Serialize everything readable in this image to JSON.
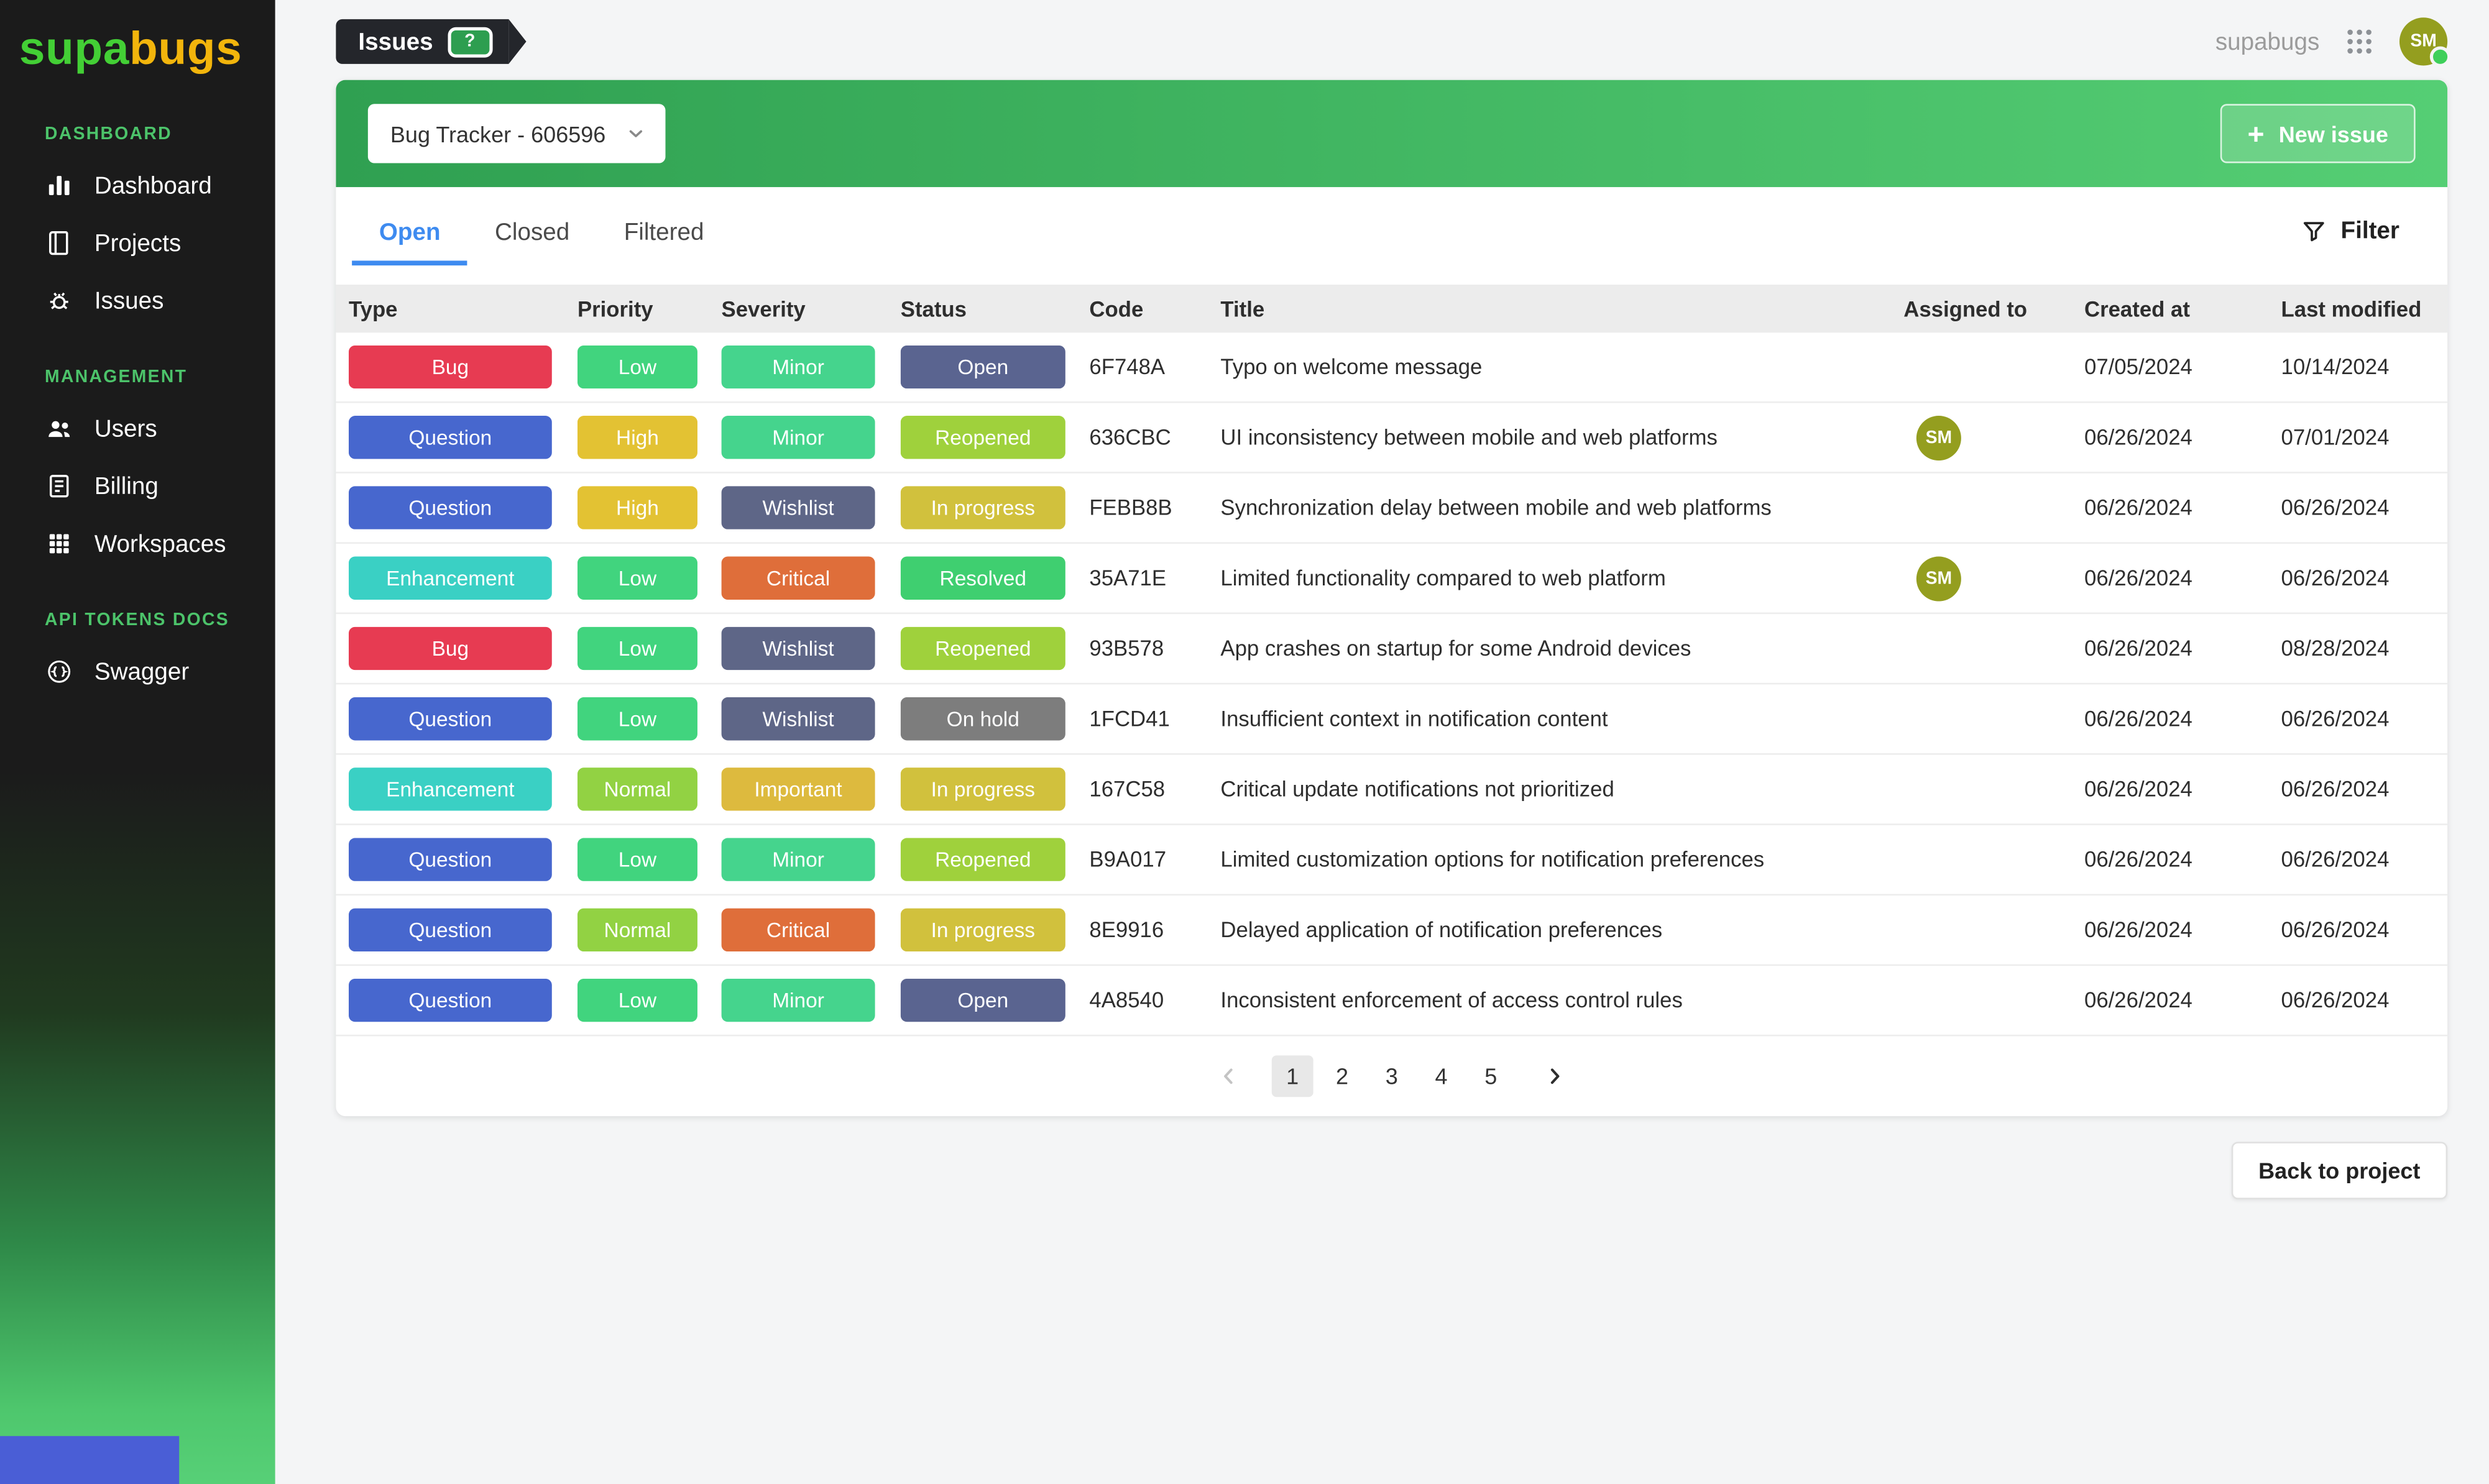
{
  "brand": {
    "part1": "supa",
    "part2": "bugs"
  },
  "sidebar": {
    "sections": [
      {
        "label": "DASHBOARD",
        "items": [
          {
            "label": "Dashboard",
            "icon": "bar-chart-icon"
          },
          {
            "label": "Projects",
            "icon": "book-icon"
          },
          {
            "label": "Issues",
            "icon": "bug-icon"
          }
        ]
      },
      {
        "label": "MANAGEMENT",
        "items": [
          {
            "label": "Users",
            "icon": "users-icon"
          },
          {
            "label": "Billing",
            "icon": "billing-icon"
          },
          {
            "label": "Workspaces",
            "icon": "grid-icon"
          }
        ]
      },
      {
        "label": "API TOKENS DOCS",
        "items": [
          {
            "label": "Swagger",
            "icon": "swagger-icon"
          }
        ]
      }
    ]
  },
  "topbar": {
    "page_tag": "Issues",
    "help_label": "?",
    "account_name": "supabugs",
    "avatar_initials": "SM"
  },
  "toolbar": {
    "project_select_value": "Bug Tracker - 606596",
    "new_issue_label": "New issue"
  },
  "tabs": [
    {
      "label": "Open",
      "active": true
    },
    {
      "label": "Closed",
      "active": false
    },
    {
      "label": "Filtered",
      "active": false
    }
  ],
  "filter_label": "Filter",
  "table": {
    "columns": [
      "Type",
      "Priority",
      "Severity",
      "Status",
      "Code",
      "Title",
      "Assigned to",
      "Created at",
      "Last modified"
    ],
    "rows": [
      {
        "type": "Bug",
        "priority": "Low",
        "severity": "Minor",
        "status": "Open",
        "code": "6F748A",
        "title": "Typo on welcome message",
        "assigned": "",
        "created_at": "07/05/2024",
        "last_modified": "10/14/2024"
      },
      {
        "type": "Question",
        "priority": "High",
        "severity": "Minor",
        "status": "Reopened",
        "code": "636CBC",
        "title": "UI inconsistency between mobile and web platforms",
        "assigned": "SM",
        "created_at": "06/26/2024",
        "last_modified": "07/01/2024"
      },
      {
        "type": "Question",
        "priority": "High",
        "severity": "Wishlist",
        "status": "In progress",
        "code": "FEBB8B",
        "title": "Synchronization delay between mobile and web platforms",
        "assigned": "",
        "created_at": "06/26/2024",
        "last_modified": "06/26/2024"
      },
      {
        "type": "Enhancement",
        "priority": "Low",
        "severity": "Critical",
        "status": "Resolved",
        "code": "35A71E",
        "title": "Limited functionality compared to web platform",
        "assigned": "SM",
        "created_at": "06/26/2024",
        "last_modified": "06/26/2024"
      },
      {
        "type": "Bug",
        "priority": "Low",
        "severity": "Wishlist",
        "status": "Reopened",
        "code": "93B578",
        "title": "App crashes on startup for some Android devices",
        "assigned": "",
        "created_at": "06/26/2024",
        "last_modified": "08/28/2024"
      },
      {
        "type": "Question",
        "priority": "Low",
        "severity": "Wishlist",
        "status": "On hold",
        "code": "1FCD41",
        "title": "Insufficient context in notification content",
        "assigned": "",
        "created_at": "06/26/2024",
        "last_modified": "06/26/2024"
      },
      {
        "type": "Enhancement",
        "priority": "Normal",
        "severity": "Important",
        "status": "In progress",
        "code": "167C58",
        "title": "Critical update notifications not prioritized",
        "assigned": "",
        "created_at": "06/26/2024",
        "last_modified": "06/26/2024"
      },
      {
        "type": "Question",
        "priority": "Low",
        "severity": "Minor",
        "status": "Reopened",
        "code": "B9A017",
        "title": "Limited customization options for notification preferences",
        "assigned": "",
        "created_at": "06/26/2024",
        "last_modified": "06/26/2024"
      },
      {
        "type": "Question",
        "priority": "Normal",
        "severity": "Critical",
        "status": "In progress",
        "code": "8E9916",
        "title": "Delayed application of notification preferences",
        "assigned": "",
        "created_at": "06/26/2024",
        "last_modified": "06/26/2024"
      },
      {
        "type": "Question",
        "priority": "Low",
        "severity": "Minor",
        "status": "Open",
        "code": "4A8540",
        "title": "Inconsistent enforcement of access control rules",
        "assigned": "",
        "created_at": "06/26/2024",
        "last_modified": "06/26/2024"
      }
    ]
  },
  "pagination": {
    "pages": [
      "1",
      "2",
      "3",
      "4",
      "5"
    ],
    "current": "1"
  },
  "back_button_label": "Back to project",
  "icons": {
    "plus-icon": "+",
    "chevron-down-icon": "caret-down",
    "chevron-left-icon": "chevron-left",
    "chevron-right-icon": "chevron-right",
    "filter-funnel-icon": "funnel",
    "apps-grid-icon": "dots-3x3",
    "bar-chart-icon": "bars",
    "book-icon": "book",
    "bug-icon": "bug",
    "users-icon": "people",
    "billing-icon": "receipt",
    "grid-icon": "grid-3x3",
    "swagger-icon": "swagger"
  },
  "colors": {
    "sidebar_accent": "#4cc36a",
    "logo_part1": "#43cf35",
    "logo_part2": "#f2b50c",
    "header_gradient": [
      "#2fa051",
      "#55ce74"
    ],
    "tab_active": "#3e8bf0",
    "avatar": "#949e1f",
    "status_dot": "#3ecf5a",
    "type": {
      "Bug": "#e73b52",
      "Question": "#4767ce",
      "Enhancement": "#3ad0c4"
    },
    "priority": {
      "Low": "#41d47e",
      "High": "#e3c233",
      "Normal": "#92d243"
    },
    "severity": {
      "Minor": "#45d48d",
      "Wishlist": "#5e6687",
      "Critical": "#df6e3a",
      "Important": "#ddba3e"
    },
    "status": {
      "Open": "#5a6490",
      "Reopened": "#9fd13c",
      "In progress": "#d1c13d",
      "Resolved": "#3fcf70",
      "On hold": "#7d7d7d"
    }
  }
}
